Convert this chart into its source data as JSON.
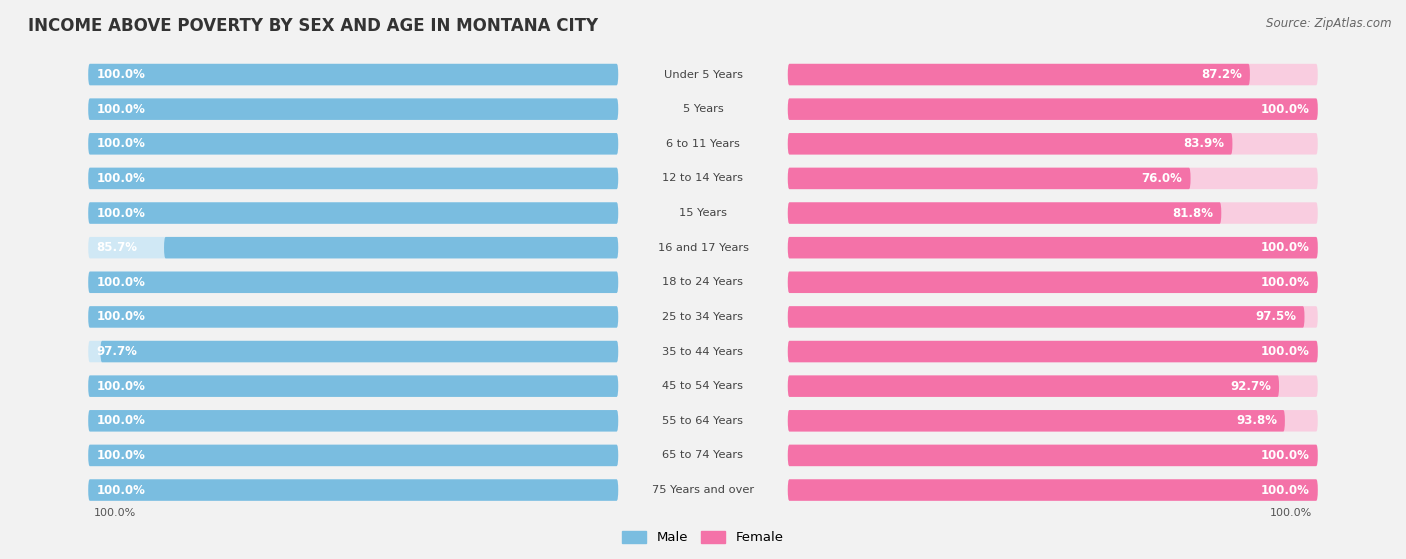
{
  "title": "INCOME ABOVE POVERTY BY SEX AND AGE IN MONTANA CITY",
  "source": "Source: ZipAtlas.com",
  "categories": [
    "Under 5 Years",
    "5 Years",
    "6 to 11 Years",
    "12 to 14 Years",
    "15 Years",
    "16 and 17 Years",
    "18 to 24 Years",
    "25 to 34 Years",
    "35 to 44 Years",
    "45 to 54 Years",
    "55 to 64 Years",
    "65 to 74 Years",
    "75 Years and over"
  ],
  "male_values": [
    100.0,
    100.0,
    100.0,
    100.0,
    100.0,
    85.7,
    100.0,
    100.0,
    97.7,
    100.0,
    100.0,
    100.0,
    100.0
  ],
  "female_values": [
    87.2,
    100.0,
    83.9,
    76.0,
    81.8,
    100.0,
    100.0,
    97.5,
    100.0,
    92.7,
    93.8,
    100.0,
    100.0
  ],
  "male_color": "#7abde0",
  "male_color_light": "#d0e8f5",
  "female_color": "#f472a8",
  "female_color_light": "#f9cde0",
  "background_color": "#f2f2f2",
  "max_value": 100.0,
  "label_fontsize": 8.5,
  "title_fontsize": 12,
  "source_fontsize": 8.5
}
